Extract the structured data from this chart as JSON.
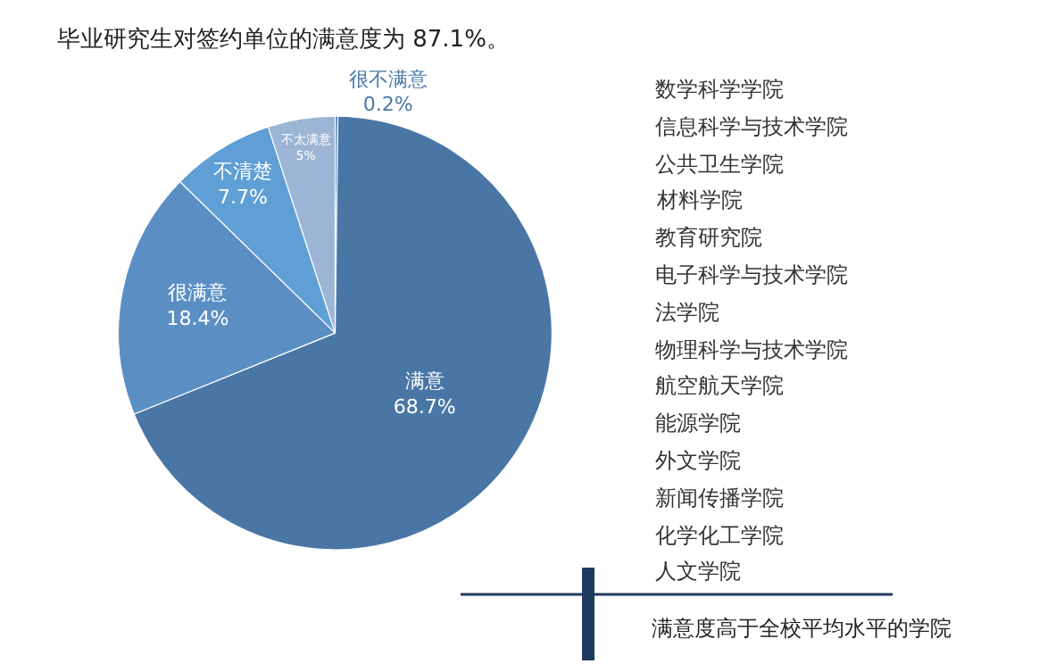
{
  "chart_data": [
    {
      "type": "pie",
      "title": "毕业研究生对签约单位的满意度为 87.1%。",
      "categories": [
        "很不满意",
        "满意",
        "很满意",
        "不清楚",
        "不太满意"
      ],
      "values": [
        0.2,
        68.7,
        18.4,
        7.7,
        5
      ],
      "value_labels": [
        "0.2%",
        "68.7%",
        "18.4%",
        "7.7%",
        "5%"
      ],
      "colors": [
        "#4a78a8",
        "#4a76a6",
        "#5b8fc4",
        "#5f9fd6",
        "#9db5d5"
      ]
    },
    {
      "type": "other",
      "annotations": [
        "数学科学学院",
        "信息科学与技术学院",
        "公共卫生学院",
        "材料学院",
        "教育研究院",
        "电子科学与技术学院",
        "法学院",
        "物理科学与技术学院",
        "航空航天学院",
        "能源学院",
        "外文学院",
        "新闻传播学院",
        "化学化工学院",
        "人文学院",
        "满意度高于全校平均水平的学院"
      ]
    }
  ]
}
